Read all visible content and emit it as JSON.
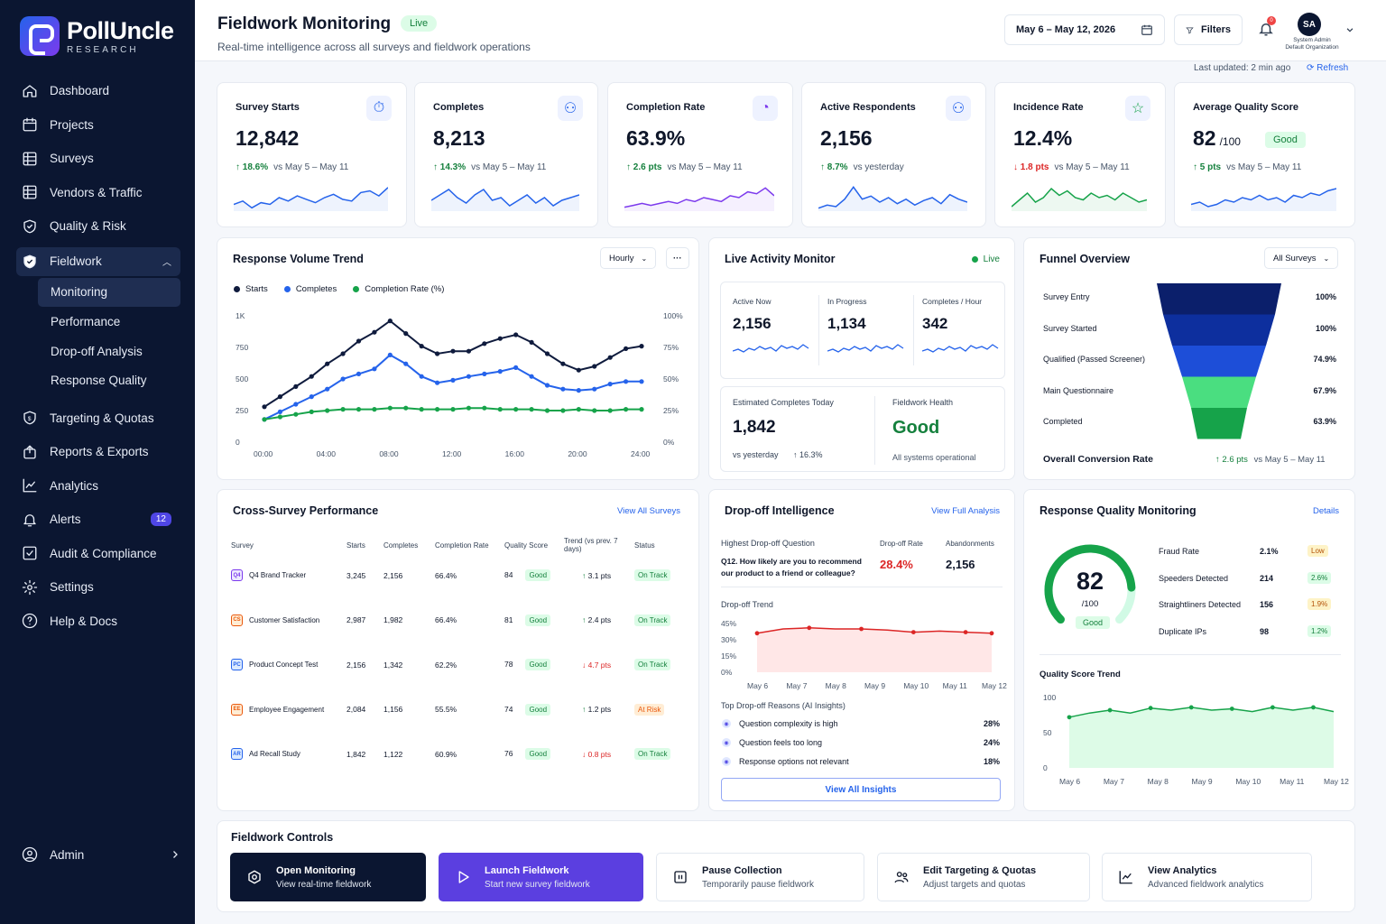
{
  "brand": {
    "name": "PollUncle",
    "tagline": "RESEARCH"
  },
  "sidebar": {
    "items": [
      {
        "label": "Dashboard",
        "icon": "home-icon"
      },
      {
        "label": "Projects",
        "icon": "calendar-icon"
      },
      {
        "label": "Surveys",
        "icon": "grid-icon"
      },
      {
        "label": "Vendors & Traffic",
        "icon": "grid-icon"
      },
      {
        "label": "Quality & Risk",
        "icon": "shield-icon"
      },
      {
        "label": "Fieldwork",
        "icon": "shield-check-icon"
      }
    ],
    "fieldwork_sub": [
      "Monitoring",
      "Performance",
      "Drop-off Analysis",
      "Response Quality"
    ],
    "items2": [
      {
        "label": "Targeting & Quotas",
        "icon": "target-shield-icon"
      },
      {
        "label": "Reports & Exports",
        "icon": "export-icon"
      },
      {
        "label": "Analytics",
        "icon": "chart-line-icon"
      },
      {
        "label": "Alerts",
        "icon": "bell-icon",
        "badge": "12"
      },
      {
        "label": "Audit & Compliance",
        "icon": "check-square-icon"
      },
      {
        "label": "Settings",
        "icon": "gear-icon"
      },
      {
        "label": "Help & Docs",
        "icon": "help-circle-icon"
      }
    ],
    "admin": "Admin"
  },
  "header": {
    "title": "Fieldwork Monitoring",
    "live": "Live",
    "subtitle": "Real-time intelligence across all surveys and fieldwork operations",
    "date_range": "May 6 – May 12, 2026",
    "filters": "Filters",
    "notif_count": "0",
    "avatar": "SA",
    "user_role": "System Admin",
    "user_org": "Default Organization",
    "last_updated": "Last updated: 2 min ago",
    "refresh": "Refresh"
  },
  "kpis": [
    {
      "label": "Survey Starts",
      "value": "12,842",
      "delta": "18.6%",
      "dir": "up",
      "compare": "vs May 5 – May 11",
      "color": "#2563eb",
      "spark": [
        22,
        20,
        24,
        21,
        22,
        18,
        20,
        17,
        19,
        21,
        18,
        16,
        19,
        20,
        15,
        14,
        17,
        12
      ]
    },
    {
      "label": "Completes",
      "value": "8,213",
      "delta": "14.3%",
      "dir": "up",
      "compare": "vs May 5 – May 11",
      "color": "#2563eb",
      "spark": [
        18,
        16,
        14,
        17,
        19,
        16,
        14,
        18,
        17,
        20,
        18,
        16,
        19,
        17,
        20,
        18,
        17,
        16
      ]
    },
    {
      "label": "Completion Rate",
      "value": "63.9%",
      "delta": "2.6 pts",
      "dir": "up",
      "compare": "vs May 5 – May 11",
      "color": "#7c3aed",
      "spark": [
        22,
        21,
        20,
        21,
        20,
        19,
        20,
        18,
        19,
        17,
        18,
        19,
        16,
        17,
        14,
        15,
        12,
        16
      ]
    },
    {
      "label": "Active Respondents",
      "value": "2,156",
      "delta": "8.7%",
      "dir": "up",
      "compare": "vs yesterday",
      "color": "#2563eb",
      "spark": [
        20,
        18,
        19,
        14,
        6,
        14,
        12,
        16,
        13,
        17,
        14,
        18,
        15,
        13,
        17,
        11,
        14,
        16
      ]
    },
    {
      "label": "Incidence Rate",
      "value": "12.4%",
      "delta": "1.8 pts",
      "dir": "down",
      "compare": "vs May 5 – May 11",
      "color": "#16a34a",
      "spark": [
        22,
        19,
        16,
        20,
        18,
        14,
        17,
        15,
        18,
        19,
        16,
        18,
        17,
        19,
        16,
        18,
        20,
        19
      ]
    },
    {
      "label": "Average Quality Score",
      "value": "82",
      "value_suffix": "/100",
      "badge": "Good",
      "delta": "5 pts",
      "dir": "up",
      "compare": "vs May 5 – May 11",
      "color": "#2563eb",
      "spark": [
        20,
        19,
        21,
        20,
        18,
        19,
        17,
        18,
        16,
        18,
        17,
        19,
        16,
        17,
        15,
        16,
        14,
        13
      ]
    }
  ],
  "response_trend": {
    "title": "Response Volume Trend",
    "interval": "Hourly",
    "legend": [
      "Starts",
      "Completes",
      "Completion Rate (%)"
    ]
  },
  "chart_data": {
    "type": "line",
    "x": [
      "00:00",
      "01:00",
      "02:00",
      "03:00",
      "04:00",
      "05:00",
      "06:00",
      "07:00",
      "08:00",
      "09:00",
      "10:00",
      "11:00",
      "12:00",
      "13:00",
      "14:00",
      "15:00",
      "16:00",
      "17:00",
      "18:00",
      "19:00",
      "20:00",
      "21:00",
      "22:00",
      "23:00",
      "24:00"
    ],
    "xticks": [
      "00:00",
      "04:00",
      "08:00",
      "12:00",
      "16:00",
      "20:00",
      "24:00"
    ],
    "yticks_left": [
      "0",
      "250",
      "500",
      "750",
      "1K"
    ],
    "yticks_right": [
      "0%",
      "25%",
      "50%",
      "75%",
      "100%"
    ],
    "ylim": [
      0,
      1000
    ],
    "series": [
      {
        "name": "Starts",
        "color": "#0f1b3d",
        "values": [
          280,
          360,
          440,
          520,
          620,
          700,
          800,
          870,
          960,
          860,
          760,
          700,
          720,
          720,
          780,
          820,
          850,
          790,
          700,
          620,
          570,
          600,
          670,
          740,
          760
        ]
      },
      {
        "name": "Completes",
        "color": "#2563eb",
        "values": [
          180,
          240,
          300,
          360,
          420,
          500,
          540,
          580,
          690,
          620,
          520,
          470,
          490,
          520,
          540,
          560,
          590,
          520,
          450,
          420,
          410,
          420,
          460,
          480,
          480
        ]
      },
      {
        "name": "Completion Rate (%)",
        "color": "#16a34a",
        "axis": "right",
        "values": [
          18,
          20,
          22,
          24,
          25,
          26,
          26,
          26,
          27,
          27,
          26,
          26,
          26,
          27,
          27,
          26,
          26,
          26,
          25,
          25,
          26,
          25,
          25,
          26,
          26
        ]
      }
    ]
  },
  "live_monitor": {
    "title": "Live Activity Monitor",
    "live": "Live",
    "stats": [
      {
        "label": "Active Now",
        "value": "2,156"
      },
      {
        "label": "In Progress",
        "value": "1,134"
      },
      {
        "label": "Completes / Hour",
        "value": "342"
      }
    ],
    "est_label": "Estimated Completes Today",
    "est_value": "1,842",
    "est_compare": "vs yesterday",
    "est_delta": "16.3%",
    "health_label": "Fieldwork Health",
    "health_value": "Good",
    "health_note": "All systems operational"
  },
  "funnel": {
    "title": "Funnel Overview",
    "filter": "All Surveys",
    "stages": [
      {
        "label": "Survey Entry",
        "pct": "100%",
        "color": "#0b1f6b"
      },
      {
        "label": "Survey Started",
        "pct": "100%",
        "color": "#0d2f9e"
      },
      {
        "label": "Qualified (Passed Screener)",
        "pct": "74.9%",
        "color": "#1d4ed8"
      },
      {
        "label": "Main Questionnaire",
        "pct": "67.9%",
        "color": "#4ade80"
      },
      {
        "label": "Completed",
        "pct": "63.9%",
        "color": "#16a34a"
      }
    ],
    "overall_label": "Overall Conversion Rate",
    "overall_delta": "2.6 pts",
    "overall_compare": "vs May 5 – May 11"
  },
  "cross_survey": {
    "title": "Cross-Survey Performance",
    "view_all": "View All Surveys",
    "columns": [
      "Survey",
      "Starts",
      "Completes",
      "Completion Rate",
      "Quality Score",
      "Trend (vs prev. 7 days)",
      "Status"
    ],
    "rows": [
      {
        "abbr": "Q4",
        "name": "Q4 Brand Tracker",
        "starts": "3,245",
        "completes": "2,156",
        "rate": "66.4%",
        "score": "84",
        "grade": "Good",
        "trend": "3.1 pts",
        "dir": "up",
        "status": "On Track",
        "icolor": "#7c3aed",
        "ibg": "#ede9fe"
      },
      {
        "abbr": "CS",
        "name": "Customer Satisfaction",
        "starts": "2,987",
        "completes": "1,982",
        "rate": "66.4%",
        "score": "81",
        "grade": "Good",
        "trend": "2.4 pts",
        "dir": "up",
        "status": "On Track",
        "icolor": "#ea580c",
        "ibg": "#ffedd5"
      },
      {
        "abbr": "PC",
        "name": "Product Concept Test",
        "starts": "2,156",
        "completes": "1,342",
        "rate": "62.2%",
        "score": "78",
        "grade": "Good",
        "trend": "4.7 pts",
        "dir": "down",
        "status": "On Track",
        "icolor": "#2563eb",
        "ibg": "#dbeafe"
      },
      {
        "abbr": "EE",
        "name": "Employee Engagement",
        "starts": "2,084",
        "completes": "1,156",
        "rate": "55.5%",
        "score": "74",
        "grade": "Good",
        "trend": "1.2 pts",
        "dir": "up",
        "status": "At Risk",
        "icolor": "#ea580c",
        "ibg": "#ffedd5"
      },
      {
        "abbr": "AR",
        "name": "Ad Recall Study",
        "starts": "1,842",
        "completes": "1,122",
        "rate": "60.9%",
        "score": "76",
        "grade": "Good",
        "trend": "0.8 pts",
        "dir": "down",
        "status": "On Track",
        "icolor": "#2563eb",
        "ibg": "#dbeafe"
      }
    ]
  },
  "dropoff": {
    "title": "Drop-off Intelligence",
    "view_full": "View Full Analysis",
    "hq_label": "Highest Drop-off Question",
    "rate_label": "Drop-off Rate",
    "abandon_label": "Abandonments",
    "question": "Q12. How likely are you to recommend our product to a friend or colleague?",
    "rate": "28.4%",
    "abandonments": "2,156",
    "trend_label": "Drop-off Trend",
    "trend_y": [
      "45%",
      "30%",
      "15%",
      "0%"
    ],
    "trend_x": [
      "May 6",
      "May 7",
      "May 8",
      "May 9",
      "May 10",
      "May 11",
      "May 12"
    ],
    "trend_values": [
      36,
      40,
      41,
      40,
      40,
      39,
      37,
      38,
      37,
      36
    ],
    "reasons_label": "Top Drop-off Reasons (AI Insights)",
    "reasons": [
      {
        "text": "Question complexity is high",
        "pct": "28%"
      },
      {
        "text": "Question feels too long",
        "pct": "24%"
      },
      {
        "text": "Response options not relevant",
        "pct": "18%"
      }
    ],
    "view_insights": "View All Insights"
  },
  "quality": {
    "title": "Response Quality Monitoring",
    "details": "Details",
    "score": "82",
    "score_suffix": "/100",
    "score_fraction": 0.82,
    "grade": "Good",
    "metrics": [
      {
        "label": "Fraud Rate",
        "value": "2.1%",
        "tag": "Low",
        "tagtype": "py"
      },
      {
        "label": "Speeders Detected",
        "value": "214",
        "tag": "2.6%",
        "tagtype": "pg"
      },
      {
        "label": "Straightliners Detected",
        "value": "156",
        "tag": "1.9%",
        "tagtype": "py"
      },
      {
        "label": "Duplicate IPs",
        "value": "98",
        "tag": "1.2%",
        "tagtype": "pg"
      }
    ],
    "trend_label": "Quality Score Trend",
    "trend_y": [
      "100",
      "50",
      "0"
    ],
    "trend_x": [
      "May 6",
      "May 7",
      "May 8",
      "May 9",
      "May 10",
      "May 11",
      "May 12"
    ],
    "trend_values": [
      72,
      78,
      82,
      78,
      85,
      82,
      86,
      82,
      84,
      80,
      86,
      82,
      86,
      80
    ]
  },
  "controls": {
    "title": "Fieldwork Controls",
    "items": [
      {
        "title": "Open Monitoring",
        "sub": "View real-time fieldwork",
        "style": "dark",
        "icon": "monitor-icon"
      },
      {
        "title": "Launch Fieldwork",
        "sub": "Start new survey fieldwork",
        "style": "purple",
        "icon": "play-icon"
      },
      {
        "title": "Pause Collection",
        "sub": "Temporarily pause fieldwork",
        "style": "light",
        "icon": "pause-icon"
      },
      {
        "title": "Edit Targeting & Quotas",
        "sub": "Adjust targets and quotas",
        "style": "light",
        "icon": "users-icon"
      },
      {
        "title": "View Analytics",
        "sub": "Advanced fieldwork analytics",
        "style": "light",
        "icon": "chart-icon"
      }
    ]
  }
}
